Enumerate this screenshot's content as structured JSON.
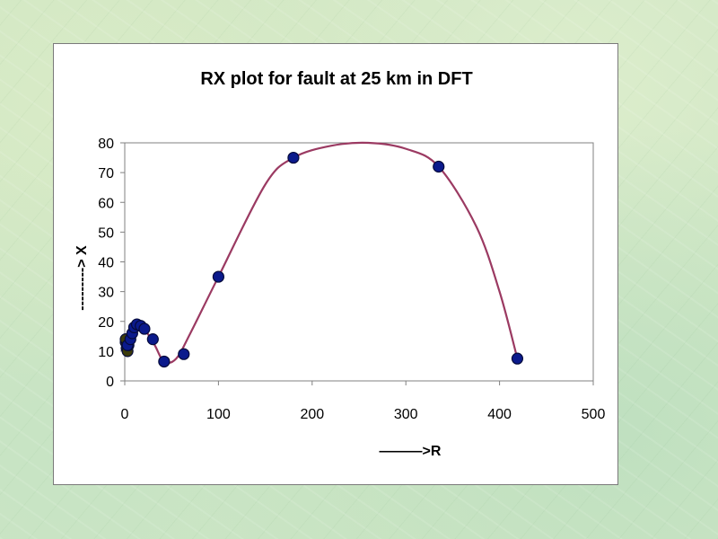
{
  "chart_data": {
    "type": "scatter",
    "title": "RX plot for fault at 25 km in DFT",
    "xlabel": "———>R",
    "ylabel": "---------> X",
    "xlim": [
      0,
      500
    ],
    "ylim": [
      0,
      80
    ],
    "xticks": [
      0,
      100,
      200,
      300,
      400,
      500
    ],
    "yticks": [
      0,
      10,
      20,
      30,
      40,
      50,
      60,
      70,
      80
    ],
    "grid": false,
    "legend": "none",
    "colors": {
      "curve": "#9b3a62",
      "marker": "#0b1a8c",
      "marker_edge": "#050a3a",
      "cluster_marker": "#3b3b0a"
    },
    "series": [
      {
        "points": [
          {
            "x": 1,
            "y": 13
          },
          {
            "x": 2,
            "y": 11
          },
          {
            "x": 3,
            "y": 10
          },
          {
            "x": 1,
            "y": 14
          },
          {
            "x": 4,
            "y": 12
          },
          {
            "x": 3,
            "y": 12
          },
          {
            "x": 6,
            "y": 14
          },
          {
            "x": 8,
            "y": 16
          },
          {
            "x": 10,
            "y": 18
          },
          {
            "x": 13,
            "y": 19
          },
          {
            "x": 17,
            "y": 18.5
          },
          {
            "x": 21,
            "y": 17.5
          },
          {
            "x": 30,
            "y": 14
          },
          {
            "x": 42,
            "y": 6.5
          },
          {
            "x": 63,
            "y": 9
          },
          {
            "x": 100,
            "y": 35
          },
          {
            "x": 180,
            "y": 75
          },
          {
            "x": 335,
            "y": 72
          },
          {
            "x": 419,
            "y": 7.5
          }
        ],
        "curve": [
          {
            "x": 3,
            "y": 11
          },
          {
            "x": 6,
            "y": 15
          },
          {
            "x": 10,
            "y": 18.5
          },
          {
            "x": 15,
            "y": 19
          },
          {
            "x": 22,
            "y": 17
          },
          {
            "x": 32,
            "y": 12
          },
          {
            "x": 42,
            "y": 6.5
          },
          {
            "x": 55,
            "y": 7.5
          },
          {
            "x": 70,
            "y": 16
          },
          {
            "x": 100,
            "y": 35
          },
          {
            "x": 150,
            "y": 66
          },
          {
            "x": 180,
            "y": 75
          },
          {
            "x": 220,
            "y": 79
          },
          {
            "x": 260,
            "y": 80
          },
          {
            "x": 300,
            "y": 78
          },
          {
            "x": 335,
            "y": 72
          },
          {
            "x": 375,
            "y": 52
          },
          {
            "x": 400,
            "y": 30
          },
          {
            "x": 419,
            "y": 7.5
          }
        ]
      }
    ]
  }
}
